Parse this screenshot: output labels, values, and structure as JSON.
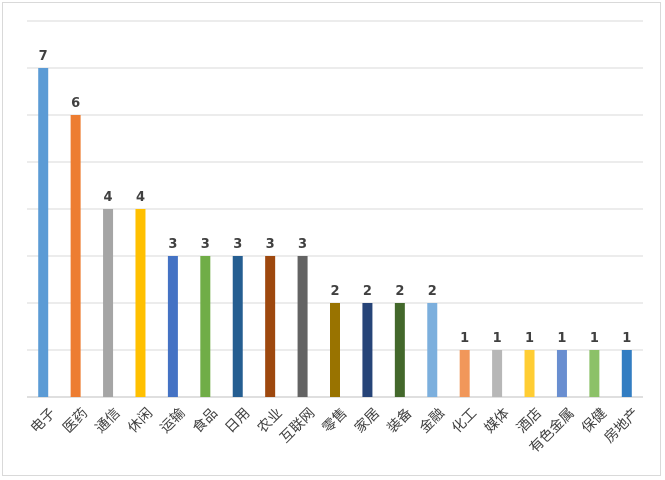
{
  "chart_data": {
    "type": "bar",
    "categories": [
      "电子",
      "医药",
      "通信",
      "休闲",
      "运输",
      "食品",
      "日用",
      "农业",
      "互联网",
      "零售",
      "家居",
      "装备",
      "金融",
      "化工",
      "媒体",
      "酒店",
      "有色金属",
      "保健",
      "房地产"
    ],
    "values": [
      7,
      6,
      4,
      4,
      3,
      3,
      3,
      3,
      3,
      2,
      2,
      2,
      2,
      1,
      1,
      1,
      1,
      1,
      1
    ],
    "colors": [
      "#5b9bd5",
      "#ed7d31",
      "#a5a5a5",
      "#ffc000",
      "#4472c4",
      "#70ad47",
      "#255e91",
      "#9e480e",
      "#636363",
      "#997300",
      "#264478",
      "#43682b",
      "#7cafdd",
      "#f1975a",
      "#b7b7b7",
      "#ffcd33",
      "#698ed0",
      "#8cc168",
      "#327dc2"
    ],
    "title": "",
    "xlabel": "",
    "ylabel": "",
    "ylim": [
      0,
      8
    ],
    "grid": true,
    "data_labels": true,
    "legend": "none"
  }
}
